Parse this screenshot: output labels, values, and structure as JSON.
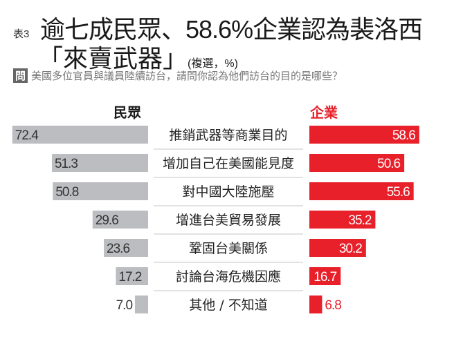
{
  "title": {
    "tag": "表3",
    "line1": "逾七成民眾、58.6%企業認為裴洛西",
    "line2": "「來賣武器」",
    "note": "(複選，%)"
  },
  "question": {
    "badge": "問",
    "text": "美國多位官員與議員陸續訪台，請問你認為他們訪台的目的是哪些？"
  },
  "colors": {
    "public": "#bcbdc0",
    "business": "#e8202a",
    "separator": "#d8d8d8"
  },
  "chart_data": {
    "type": "bar",
    "orientation": "horizontal-butterfly",
    "categories": [
      "推銷武器等商業目的",
      "增加自己在美國能見度",
      "對中國大陸施壓",
      "增進台美貿易發展",
      "鞏固台美關係",
      "討論台海危機因應",
      "其他 / 不知道"
    ],
    "series": [
      {
        "name": "民眾",
        "values": [
          72.4,
          51.3,
          50.8,
          29.6,
          23.6,
          17.2,
          7.0
        ]
      },
      {
        "name": "企業",
        "values": [
          58.6,
          50.6,
          55.6,
          35.2,
          30.2,
          16.7,
          6.8
        ]
      }
    ],
    "unit": "%"
  }
}
